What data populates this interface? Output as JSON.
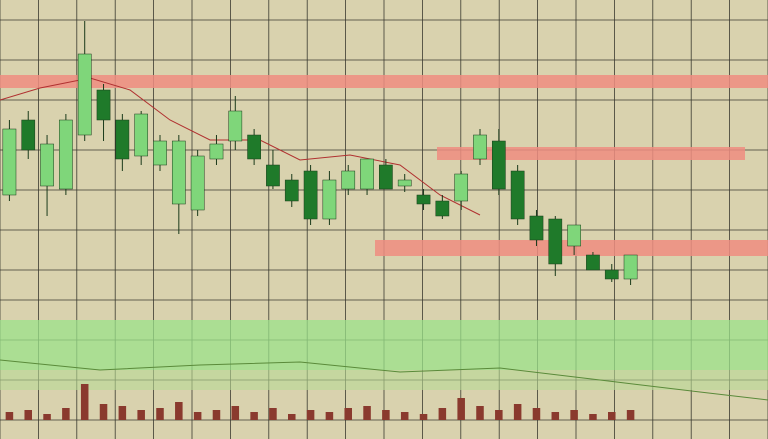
{
  "chart_data": {
    "type": "candlestick",
    "ylim": [
      0,
      100
    ],
    "grid": true,
    "up_color": "#7fd67a",
    "down_color": "#1f7a2a",
    "candles": {
      "open": [
        35,
        60,
        38,
        37,
        55,
        70,
        60,
        48,
        45,
        32,
        30,
        47,
        53,
        55,
        45,
        40,
        43,
        27,
        37,
        37,
        45,
        38,
        35,
        33,
        33,
        47,
        53,
        43,
        28,
        27,
        18,
        15,
        10,
        7
      ],
      "high": [
        60,
        63,
        55,
        62,
        93,
        72,
        62,
        63,
        55,
        55,
        50,
        55,
        68,
        57,
        50,
        42,
        45,
        43,
        45,
        47,
        47,
        42,
        37,
        35,
        43,
        57,
        57,
        45,
        30,
        28,
        25,
        16,
        12,
        15
      ],
      "low": [
        33,
        47,
        28,
        35,
        53,
        53,
        43,
        45,
        43,
        22,
        28,
        45,
        50,
        45,
        37,
        31,
        25,
        25,
        35,
        35,
        37,
        36,
        30,
        27,
        30,
        45,
        35,
        25,
        18,
        8,
        15,
        10,
        6,
        5
      ],
      "close": [
        57,
        50,
        52,
        60,
        82,
        60,
        47,
        62,
        53,
        53,
        48,
        52,
        63,
        47,
        38,
        33,
        27,
        40,
        43,
        47,
        37,
        40,
        32,
        28,
        42,
        55,
        37,
        27,
        20,
        12,
        25,
        10,
        7,
        15
      ]
    },
    "volume": {
      "color": "#8a3a2e",
      "ylim": [
        0,
        100
      ],
      "values": [
        20,
        25,
        15,
        30,
        90,
        40,
        35,
        25,
        30,
        45,
        20,
        25,
        35,
        20,
        30,
        15,
        25,
        20,
        30,
        35,
        25,
        20,
        15,
        30,
        55,
        35,
        25,
        40,
        30,
        20,
        25,
        15,
        20,
        25
      ]
    }
  }
}
